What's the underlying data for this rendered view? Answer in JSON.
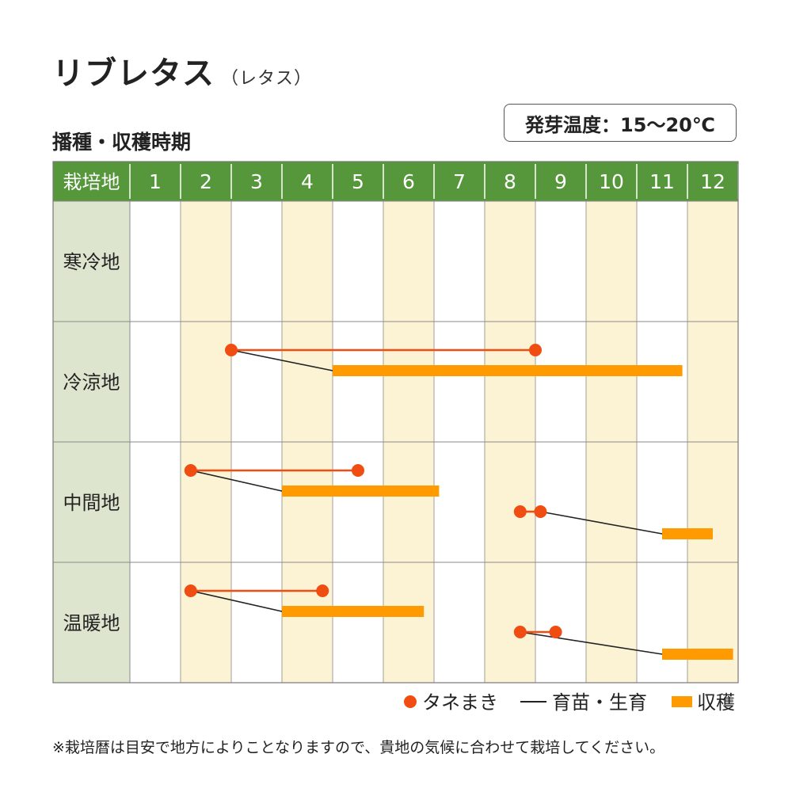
{
  "header": {
    "title": "リブレタス",
    "title_sub": "（レタス）",
    "section_title": "播種・収穫時期",
    "germination_temp": "発芽温度：15〜20℃"
  },
  "footnote": "※栽培暦は目安で地方によりことなりますので、貴地の気候に合わせて栽培してください。",
  "colors": {
    "header_green": "#55973a",
    "region_bg": "#dde5cf",
    "stripe": "#fcf3d5",
    "grid": "#8a8a8a",
    "sowing": "#f04d12",
    "nursery": "#222222",
    "harvest": "#ff9a00"
  },
  "chart_data": {
    "type": "timeline",
    "corner_label": "栽培地",
    "months": [
      "1",
      "2",
      "3",
      "4",
      "5",
      "6",
      "7",
      "8",
      "9",
      "10",
      "11",
      "12"
    ],
    "regions": [
      {
        "name": "寒冷地",
        "sowing": [],
        "nursery": [],
        "harvest": []
      },
      {
        "name": "冷涼地",
        "sowing": [
          [
            3.0,
            9.0
          ]
        ],
        "nursery": [
          [
            3.0,
            5.0
          ]
        ],
        "harvest": [
          [
            5.0,
            11.9
          ]
        ]
      },
      {
        "name": "中間地",
        "sowing": [
          [
            2.2,
            5.5
          ],
          [
            8.7,
            9.1
          ]
        ],
        "nursery": [
          [
            2.2,
            4.0
          ],
          [
            9.1,
            11.5
          ]
        ],
        "harvest": [
          [
            4.0,
            7.1
          ],
          [
            11.5,
            12.5
          ]
        ]
      },
      {
        "name": "温暖地",
        "sowing": [
          [
            2.2,
            4.8
          ],
          [
            8.7,
            9.4
          ]
        ],
        "nursery": [
          [
            2.2,
            4.0
          ],
          [
            8.7,
            11.5
          ]
        ],
        "harvest": [
          [
            4.0,
            6.8
          ],
          [
            11.5,
            12.9
          ]
        ]
      }
    ],
    "legend": {
      "sowing": "タネまき",
      "nursery": "育苗・生育",
      "harvest": "収穫"
    }
  }
}
